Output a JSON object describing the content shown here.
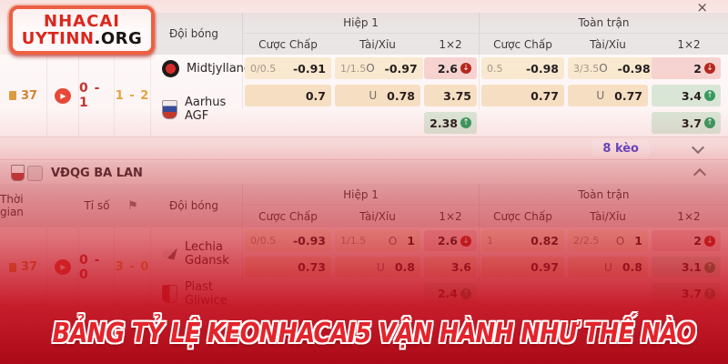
{
  "brand": {
    "line1": "NHACAI",
    "line2": "UYTINN",
    "suffix": ".ORG"
  },
  "icons": {
    "play": "▶",
    "close": "×",
    "flag": "⚑"
  },
  "columns": {
    "team": "Đội bóng",
    "half1": "Hiệp 1",
    "fulltime": "Toàn trận",
    "handicap": "Cược Chấp",
    "over_under": "Tài/Xỉu",
    "one_x_two": "1×2",
    "time": "Thời gian",
    "score": "Tỉ số"
  },
  "match1": {
    "time": "37",
    "score": "0 - 1",
    "ht_score": "1 - 2",
    "home": "Midtjylland",
    "away_line1": "Aarhus",
    "away_line2": "AGF",
    "h1": {
      "hdp_label": "0/0.5",
      "hdp_odds": "-0.91",
      "hdp2_odds": "0.7",
      "ou_label": "1/1.5",
      "over": "O",
      "over_odds": "-0.97",
      "under": "U",
      "under_odds": "0.78",
      "x12": [
        "2.6",
        "3.75",
        "2.38"
      ],
      "x12_arrows": [
        "↓",
        "",
        "↑"
      ]
    },
    "ft": {
      "hdp_label": "0.5",
      "hdp_odds": "-0.98",
      "hdp2_odds": "0.77",
      "ou_label": "3/3.5",
      "over": "O",
      "over_odds": "-0.98",
      "under": "U",
      "under_odds": "0.77",
      "x12": [
        "2",
        "3.4",
        "3.7"
      ],
      "x12_arrows": [
        "↓",
        "↑",
        "↑"
      ]
    },
    "more_bets": "8 kèo"
  },
  "league2": {
    "name": "VĐQG BA LAN"
  },
  "match2": {
    "time": "37",
    "score": "0 - 0",
    "ht_score": "3 - 0",
    "home_line1": "Lechia",
    "home_line2": "Gdansk",
    "away_line1": "Piast",
    "away_line2": "Gliwice",
    "h1": {
      "hdp_label": "0/0.5",
      "hdp_odds": "-0.93",
      "hdp2_odds": "0.73",
      "ou_label": "1/1.5",
      "over": "O",
      "over_odds": "1",
      "under": "U",
      "under_odds": "0.8",
      "x12": [
        "2.6",
        "3.6",
        "2.4"
      ],
      "x12_arrows": [
        "↓",
        "",
        "↑"
      ]
    },
    "ft": {
      "hdp_label": "1",
      "hdp_odds": "0.82",
      "hdp2_odds": "0.97",
      "ou_label": "2/2.5",
      "over": "O",
      "over_odds": "1",
      "under": "U",
      "under_odds": "0.8",
      "x12": [
        "2",
        "3.1",
        "3.7"
      ],
      "x12_arrows": [
        "↓",
        "↑",
        "↑"
      ]
    }
  },
  "banner": {
    "text": "BẢNG TỶ LỆ KEONHACAI5 VẬN HÀNH NHƯ THẾ NÀO"
  },
  "colors": {
    "accent_red": "#da251a",
    "odds_up": "#2f9e5f",
    "odds_down": "#b3251d",
    "bets_purple": "#5149d6"
  }
}
